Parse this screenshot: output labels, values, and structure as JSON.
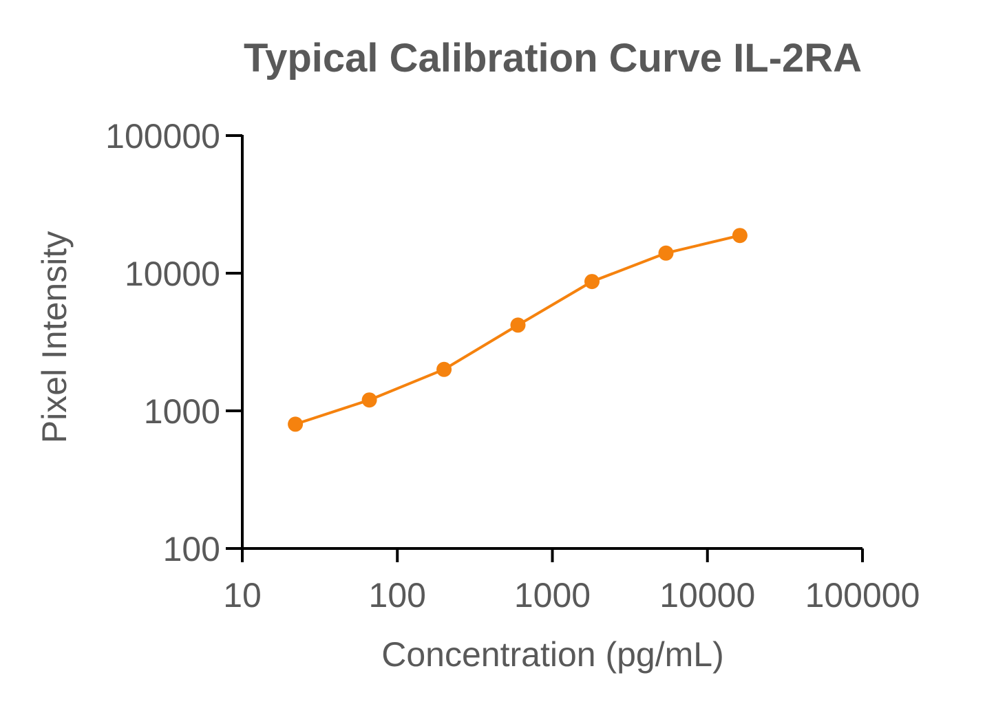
{
  "chart_data": {
    "type": "line",
    "title": "Typical Calibration Curve IL-2RA",
    "xlabel": "Concentration (pg/mL)",
    "ylabel": "Pixel Intensity",
    "x_scale": "log",
    "y_scale": "log",
    "xlim": [
      10,
      100000
    ],
    "ylim": [
      100,
      100000
    ],
    "x_ticks": [
      10,
      100,
      1000,
      10000,
      100000
    ],
    "x_tick_labels": [
      "10",
      "100",
      "1000",
      "10000",
      "100000"
    ],
    "y_ticks": [
      100,
      1000,
      10000,
      100000
    ],
    "y_tick_labels": [
      "100",
      "1000",
      "10000",
      "100000"
    ],
    "grid": false,
    "legend": "none",
    "series": [
      {
        "color": "#F5820E",
        "marker": "circle",
        "x": [
          22,
          66,
          200,
          600,
          1800,
          5400,
          16200
        ],
        "y": [
          800,
          1200,
          2000,
          4200,
          8700,
          14000,
          18800
        ]
      }
    ]
  }
}
